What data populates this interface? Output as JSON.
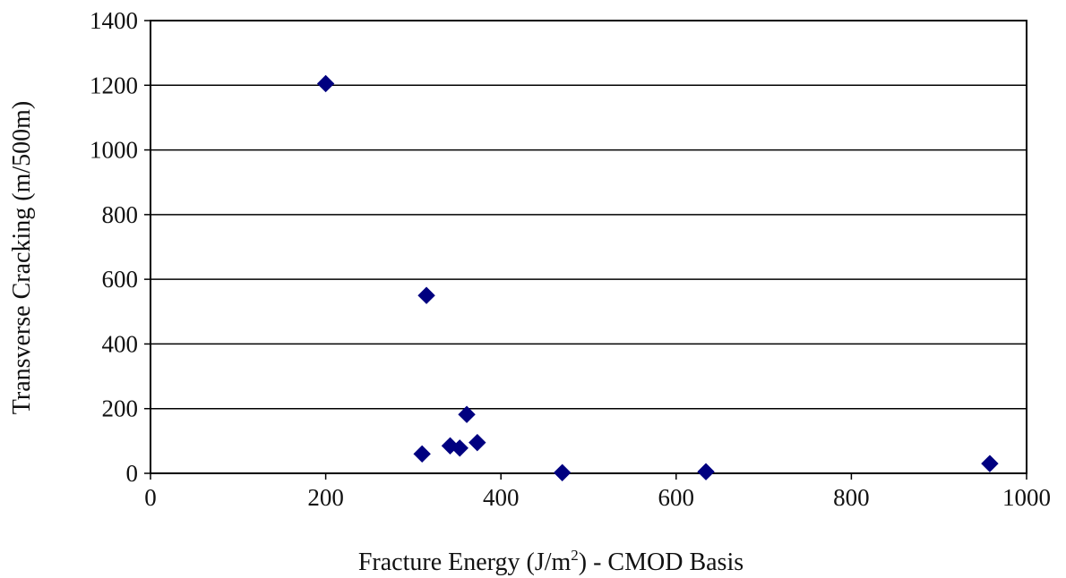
{
  "chart_data": {
    "type": "scatter",
    "title": "",
    "xlabel_parts": {
      "before": "Fracture Energy (J/m",
      "sup": "2",
      "after": ") - CMOD Basis"
    },
    "ylabel": "Transverse Cracking (m/500m)",
    "xlim": [
      0,
      1000
    ],
    "ylim": [
      0,
      1400
    ],
    "x_ticks": [
      "0",
      "200",
      "400",
      "600",
      "800",
      "1000"
    ],
    "y_ticks": [
      "0",
      "200",
      "400",
      "600",
      "800",
      "1000",
      "1200",
      "1400"
    ],
    "grid": "horizontal",
    "legend": "none",
    "marker": "diamond",
    "marker_color": "#000080",
    "points": [
      {
        "x": 200,
        "y": 1205
      },
      {
        "x": 315,
        "y": 550
      },
      {
        "x": 310,
        "y": 60
      },
      {
        "x": 342,
        "y": 85
      },
      {
        "x": 353,
        "y": 78
      },
      {
        "x": 361,
        "y": 182
      },
      {
        "x": 373,
        "y": 95
      },
      {
        "x": 470,
        "y": 2
      },
      {
        "x": 634,
        "y": 5
      },
      {
        "x": 958,
        "y": 30
      }
    ]
  }
}
